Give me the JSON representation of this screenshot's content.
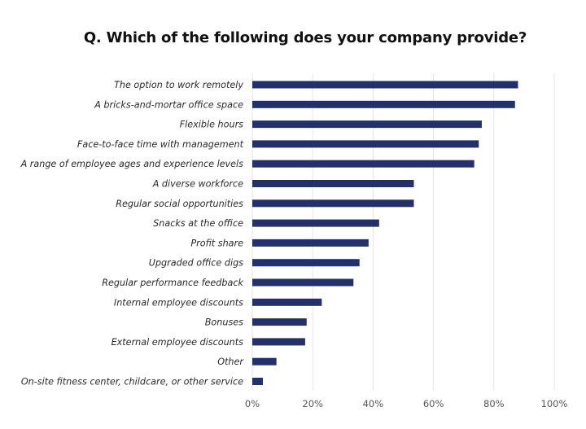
{
  "chart_data": {
    "type": "bar",
    "orientation": "horizontal",
    "title": "Q.  Which of the following does your company provide?",
    "xlabel": "",
    "ylabel": "",
    "xlim": [
      0,
      100
    ],
    "x_ticks": [
      "0%",
      "20%",
      "40%",
      "60%",
      "80%",
      "100%"
    ],
    "grid": true,
    "bar_color": "#24306a",
    "categories": [
      "The option to work remotely",
      "A bricks-and-mortar office space",
      "Flexible hours",
      "Face-to-face time with management",
      "A range of employee ages and experience levels",
      "A diverse workforce",
      "Regular social opportunities",
      "Snacks at the office",
      "Profit share",
      "Upgraded office digs",
      "Regular performance feedback",
      "Internal employee discounts",
      "Bonuses",
      "External employee discounts",
      "Other",
      "On-site fitness center, childcare, or other service"
    ],
    "values": [
      88,
      87,
      76,
      75,
      73.5,
      53.5,
      53.5,
      42,
      38.5,
      35.5,
      33.5,
      23,
      18,
      17.5,
      8,
      3.5
    ]
  }
}
